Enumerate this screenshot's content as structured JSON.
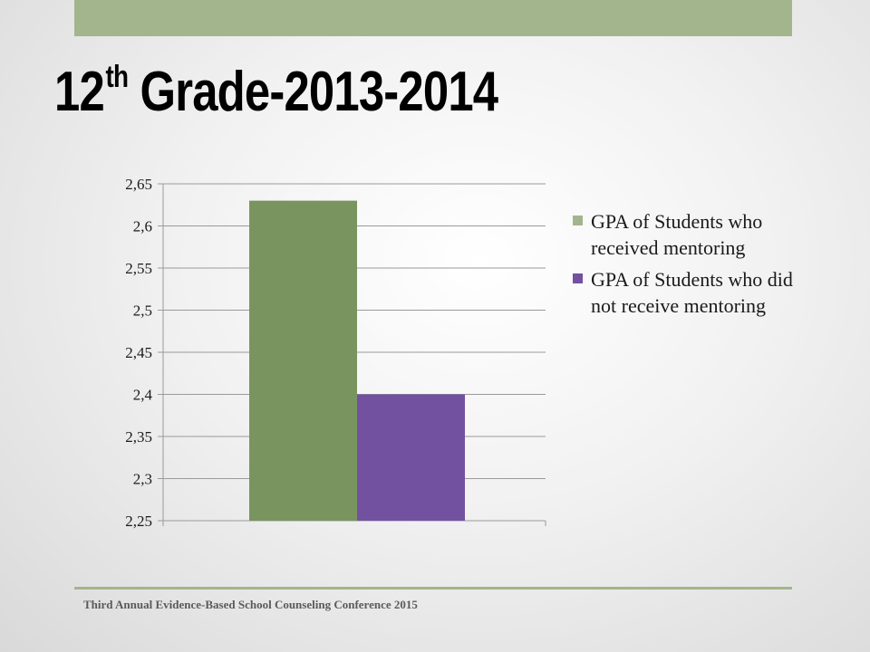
{
  "slide": {
    "title_main": "12",
    "title_sup": "th",
    "title_rest": " Grade-2013-2014",
    "footer": "Third Annual Evidence-Based School Counseling Conference 2015"
  },
  "colors": {
    "accent_bar": "#a3b58c",
    "series_1": "#7a9460",
    "series_2": "#7251a0",
    "legend_1": "#a3b58c",
    "legend_2": "#7251a0"
  },
  "chart_data": {
    "type": "bar",
    "categories": [
      ""
    ],
    "series": [
      {
        "name": "GPA of Students who received mentoring",
        "values": [
          2.63
        ]
      },
      {
        "name": "GPA of Students who did not receive mentoring",
        "values": [
          2.4
        ]
      }
    ],
    "ylim": [
      2.25,
      2.65
    ],
    "yticks": [
      2.25,
      2.3,
      2.35,
      2.4,
      2.45,
      2.5,
      2.55,
      2.6,
      2.65
    ],
    "ytick_labels": [
      "2,25",
      "2,3",
      "2,35",
      "2,4",
      "2,45",
      "2,5",
      "2,55",
      "2,6",
      "2,65"
    ],
    "grid": true,
    "legend_position": "right",
    "title": "",
    "xlabel": "",
    "ylabel": ""
  }
}
